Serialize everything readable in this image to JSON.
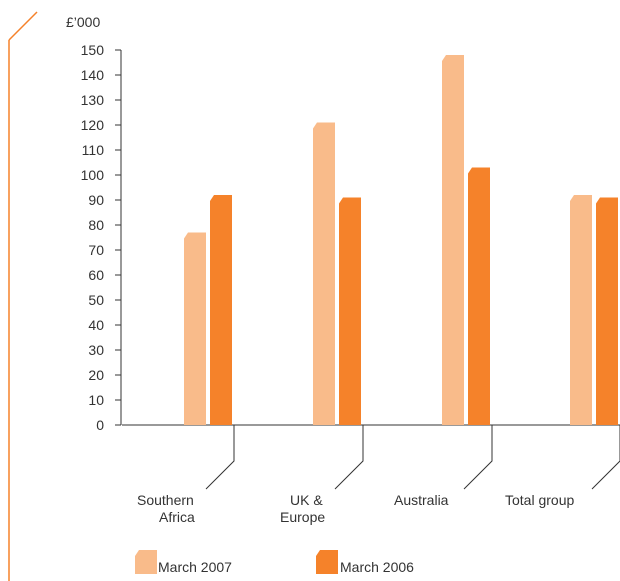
{
  "chart_data": {
    "type": "bar",
    "unit_label": "£’000",
    "categories": [
      [
        "Southern",
        "Africa"
      ],
      [
        "UK &",
        "Europe"
      ],
      [
        "Australia"
      ],
      [
        "Total group"
      ]
    ],
    "series": [
      {
        "name": "March 2007",
        "color": "#f9bb8a",
        "values": [
          77,
          121,
          148,
          92
        ]
      },
      {
        "name": "March 2006",
        "color": "#f5822a",
        "values": [
          92,
          91,
          103,
          91
        ]
      }
    ],
    "ylim": [
      0,
      150
    ],
    "yticks": [
      0,
      10,
      20,
      30,
      40,
      50,
      60,
      70,
      80,
      90,
      100,
      110,
      120,
      130,
      140,
      150
    ],
    "grid": false,
    "legend_position": "bottom-left"
  }
}
